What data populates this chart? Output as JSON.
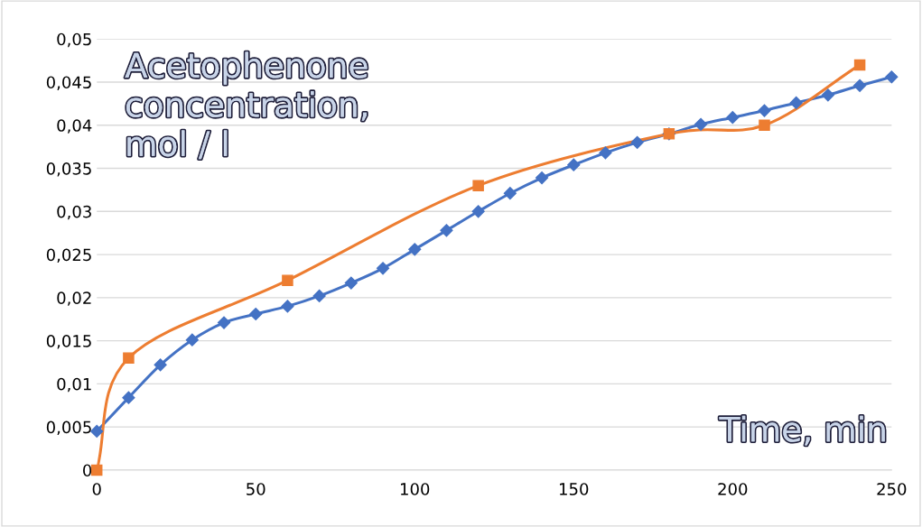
{
  "chart_data": {
    "type": "line",
    "xlabel": "Time, min",
    "ylabel": "Acetophenone concentration, mol / l",
    "xlim": [
      0,
      250
    ],
    "xticks": [
      0,
      50,
      100,
      150,
      200,
      250
    ],
    "ylim": [
      0,
      0.05
    ],
    "yticks": [
      {
        "value": 0,
        "label": "0"
      },
      {
        "value": 0.005,
        "label": "0,005"
      },
      {
        "value": 0.01,
        "label": "0,01"
      },
      {
        "value": 0.015,
        "label": "0,015"
      },
      {
        "value": 0.02,
        "label": "0,02"
      },
      {
        "value": 0.025,
        "label": "0,025"
      },
      {
        "value": 0.03,
        "label": "0,03"
      },
      {
        "value": 0.035,
        "label": "0,035"
      },
      {
        "value": 0.04,
        "label": "0,04"
      },
      {
        "value": 0.045,
        "label": "0,045"
      },
      {
        "value": 0.05,
        "label": "0,05"
      }
    ],
    "grid": "y",
    "legend": false,
    "series": [
      {
        "color": "#4472c4",
        "marker": "diamond",
        "x": [
          0,
          10,
          20,
          30,
          40,
          50,
          60,
          70,
          80,
          90,
          100,
          110,
          120,
          130,
          140,
          150,
          160,
          170,
          180,
          190,
          200,
          210,
          220,
          230,
          240,
          250
        ],
        "values": [
          0.0045,
          0.0084,
          0.0122,
          0.0151,
          0.0171,
          0.0181,
          0.019,
          0.0202,
          0.0217,
          0.0234,
          0.0256,
          0.0278,
          0.03,
          0.0321,
          0.0339,
          0.0354,
          0.0368,
          0.038,
          0.039,
          0.0401,
          0.0409,
          0.0417,
          0.0426,
          0.0435,
          0.0446,
          0.0456
        ]
      },
      {
        "color": "#ed7d31",
        "marker": "square",
        "x": [
          0,
          10,
          60,
          120,
          180,
          210,
          240
        ],
        "values": [
          0,
          0.013,
          0.022,
          0.033,
          0.039,
          0.04,
          0.047
        ]
      }
    ]
  }
}
